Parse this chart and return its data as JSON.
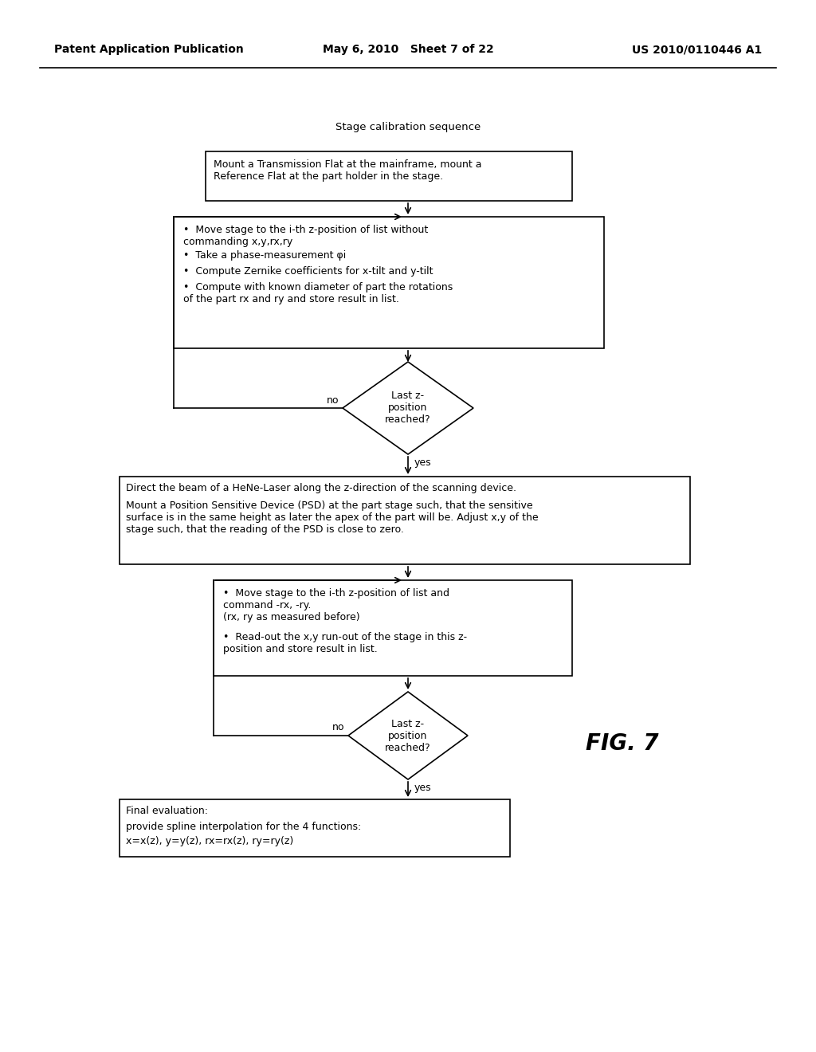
{
  "bg_color": "#ffffff",
  "header_left": "Patent Application Publication",
  "header_mid": "May 6, 2010   Sheet 7 of 22",
  "header_right": "US 2010/0110446 A1",
  "title": "Stage calibration sequence",
  "box1_text": "Mount a Transmission Flat at the mainframe, mount a\nReference Flat at the part holder in the stage.",
  "box2_bullet1": "Move stage to the i-th z-position of list without\ncommanding x,y,rx,ry",
  "box2_bullet2": "Take a phase-measurement φi",
  "box2_bullet3": "Compute Zernike coefficients for x-tilt and y-tilt",
  "box2_bullet4": "Compute with known diameter of part the rotations\nof the part rx and ry and store result in list.",
  "diamond1_text": "Last z-\nposition\nreached?",
  "diamond1_no": "no",
  "diamond1_yes": "yes",
  "box3_line1": "Direct the beam of a HeNe-Laser along the z-direction of the scanning device.",
  "box3_line2": "Mount a Position Sensitive Device (PSD) at the part stage such, that the sensitive\nsurface is in the same height as later the apex of the part will be. Adjust x,y of the\nstage such, that the reading of the PSD is close to zero.",
  "box4_bullet1": "Move stage to the i-th z-position of list and\ncommand -rx, -ry.\n(rx, ry as measured before)",
  "box4_bullet2": "Read-out the x,y run-out of the stage in this z-\nposition and store result in list.",
  "diamond2_text": "Last z-\nposition\nreached?",
  "diamond2_no": "no",
  "diamond2_yes": "yes",
  "box5_line1": "Final evaluation:",
  "box5_line2": "provide spline interpolation for the 4 functions:",
  "box5_line3": "x=x(z), y=y(z), rx=rx(z), ry=ry(z)",
  "fig_label": "FIG. 7"
}
